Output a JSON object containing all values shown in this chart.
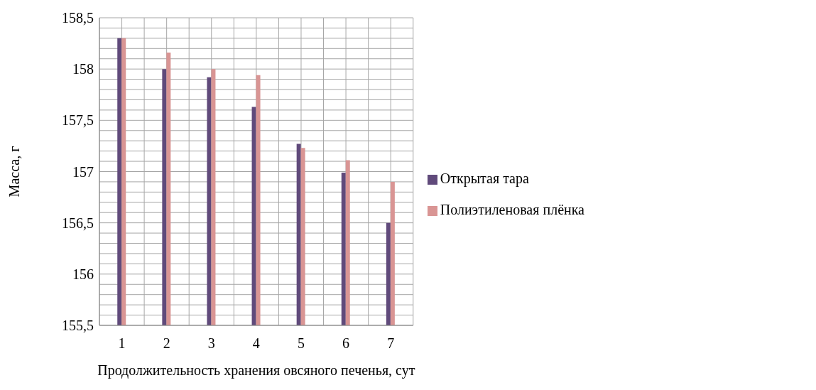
{
  "chart_data": {
    "type": "bar",
    "xlabel": "Продолжительность хранения овсяного печенья, сут",
    "ylabel": "Масса, г",
    "categories": [
      "1",
      "2",
      "3",
      "4",
      "5",
      "6",
      "7"
    ],
    "series": [
      {
        "name": "Открытая тара",
        "color": "#604a7b",
        "values": [
          158.3,
          158.0,
          157.92,
          157.63,
          157.27,
          156.99,
          156.5
        ]
      },
      {
        "name": "Полиэтиленовая плёнка",
        "color": "#d99594",
        "values": [
          158.3,
          158.16,
          158.0,
          157.94,
          157.23,
          157.11,
          156.9
        ]
      }
    ],
    "ylim": [
      155.5,
      158.5
    ],
    "yticks": [
      {
        "value": 155.5,
        "label": "155,5"
      },
      {
        "value": 155.6,
        "label": null
      },
      {
        "value": 155.7,
        "label": null
      },
      {
        "value": 155.8,
        "label": null
      },
      {
        "value": 155.9,
        "label": null
      },
      156,
      {
        "value": 156.1,
        "label": null
      },
      {
        "value": 156.2,
        "label": null
      },
      {
        "value": 156.3,
        "label": null
      },
      {
        "value": 156.4,
        "label": null
      },
      {
        "value": 156.5,
        "label": "156,5"
      },
      {
        "value": 156.6,
        "label": null
      },
      {
        "value": 156.7,
        "label": null
      },
      {
        "value": 156.8,
        "label": null
      },
      {
        "value": 156.9,
        "label": null
      },
      157,
      {
        "value": 157.1,
        "label": null
      },
      {
        "value": 157.2,
        "label": null
      },
      {
        "value": 157.3,
        "label": null
      },
      {
        "value": 157.4,
        "label": null
      },
      {
        "value": 157.5,
        "label": "157,5"
      },
      {
        "value": 157.6,
        "label": null
      },
      {
        "value": 157.7,
        "label": null
      },
      {
        "value": 157.8,
        "label": null
      },
      {
        "value": 157.9,
        "label": null
      },
      158,
      {
        "value": 158.1,
        "label": null
      },
      {
        "value": 158.2,
        "label": null
      },
      {
        "value": 158.3,
        "label": null
      },
      {
        "value": 158.4,
        "label": null
      },
      {
        "value": 158.5,
        "label": "158,5"
      }
    ],
    "grid": true,
    "legend": "right"
  }
}
